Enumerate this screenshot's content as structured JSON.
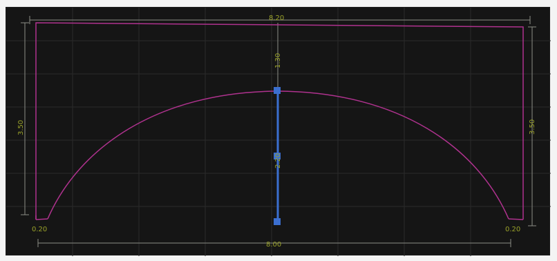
{
  "canvas": {
    "background": "#151515",
    "grid_color": "#2a2a2a",
    "outline_color": "#b0328f",
    "dimension_color": "#8d8f86",
    "dimension_text_color": "#9aa22a",
    "handle_color": "#3b6fd0"
  },
  "dimensions": {
    "top_width": "8.20",
    "bottom_width": "8.00",
    "left_height": "3.50",
    "right_height": "3.50",
    "arch_rise": "1.30",
    "center_height": "2.20",
    "bottom_left_corner": "0.20",
    "bottom_right_corner": "0.20"
  }
}
